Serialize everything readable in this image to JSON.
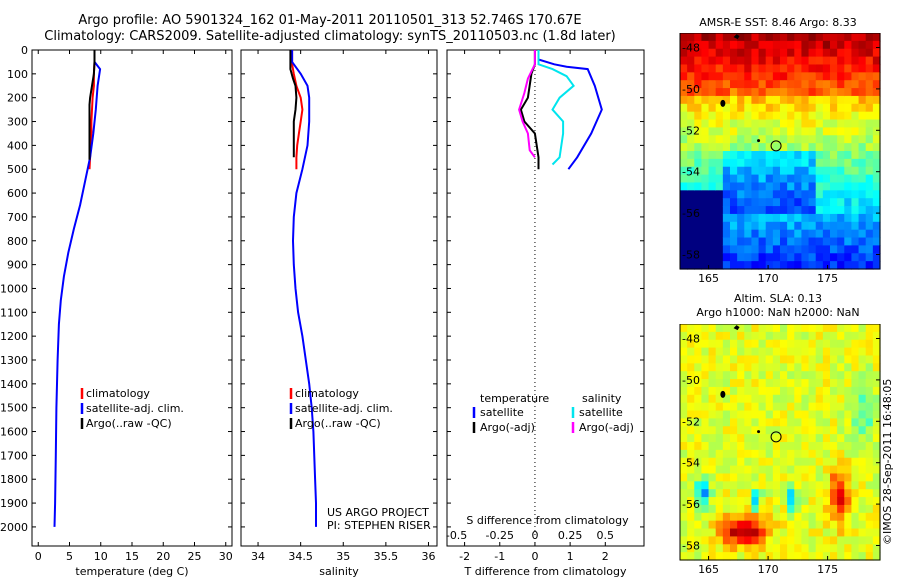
{
  "header": {
    "title_line1": "Argo profile: AO 5901324_162 01-May-2011 20110501_313 52.746S 170.67E",
    "title_line2": "Climatology: CARS2009. Satellite-adjusted climatology: synTS_20110503.nc (1.8d later)"
  },
  "colors": {
    "climatology": "#ff0000",
    "satellite": "#0000ff",
    "argo": "#000000",
    "satellite_salinity": "#00e5ee",
    "argo_salinity": "#ff00ff"
  },
  "chart_data": [
    {
      "type": "line",
      "id": "temperature",
      "xlabel": "temperature (deg C)",
      "ylabel": "",
      "xlim": [
        -1,
        31
      ],
      "ylim": [
        2080,
        0
      ],
      "xticks": [
        0,
        5,
        10,
        15,
        20,
        25,
        30
      ],
      "yticks": [
        0,
        100,
        200,
        300,
        400,
        500,
        600,
        700,
        800,
        900,
        1000,
        1100,
        1200,
        1300,
        1400,
        1500,
        1600,
        1700,
        1800,
        1900,
        2000
      ],
      "legend": [
        "climatology",
        "satellite-adj. clim.",
        "Argo(..raw -QC)"
      ],
      "legend_position": "lower-left",
      "series": [
        {
          "name": "climatology",
          "color": "#ff0000",
          "points": [
            [
              9,
              0
            ],
            [
              9,
              50
            ],
            [
              8.9,
              100
            ],
            [
              8.9,
              150
            ],
            [
              8.7,
              200
            ],
            [
              8.6,
              250
            ],
            [
              8.5,
              300
            ],
            [
              8.5,
              350
            ],
            [
              8.4,
              400
            ],
            [
              8.3,
              450
            ],
            [
              8.2,
              500
            ]
          ]
        },
        {
          "name": "satellite-adj. clim.",
          "color": "#0000ff",
          "points": [
            [
              9,
              0
            ],
            [
              9,
              50
            ],
            [
              9.9,
              80
            ],
            [
              9.5,
              150
            ],
            [
              9.2,
              250
            ],
            [
              8.8,
              350
            ],
            [
              8.3,
              450
            ],
            [
              7.5,
              550
            ],
            [
              6.7,
              650
            ],
            [
              5.7,
              750
            ],
            [
              4.8,
              850
            ],
            [
              4.1,
              950
            ],
            [
              3.6,
              1050
            ],
            [
              3.3,
              1150
            ],
            [
              3.1,
              1300
            ],
            [
              2.9,
              1500
            ],
            [
              2.8,
              1700
            ],
            [
              2.7,
              1900
            ],
            [
              2.6,
              2000
            ]
          ]
        },
        {
          "name": "Argo(..raw -QC)",
          "color": "#000000",
          "points": [
            [
              9,
              0
            ],
            [
              9,
              50
            ],
            [
              8.9,
              100
            ],
            [
              8.6,
              150
            ],
            [
              8.3,
              200
            ],
            [
              8.2,
              230
            ],
            [
              8.2,
              300
            ],
            [
              8.2,
              400
            ],
            [
              8.2,
              460
            ]
          ]
        }
      ]
    },
    {
      "type": "line",
      "id": "salinity",
      "xlabel": "salinity",
      "ylabel": "",
      "xlim": [
        33.8,
        36.1
      ],
      "ylim": [
        2080,
        0
      ],
      "xticks": [
        34,
        34.5,
        35,
        35.5,
        36
      ],
      "legend": [
        "climatology",
        "satellite-adj. clim.",
        "Argo(..raw -QC)"
      ],
      "legend_position": "lower-left",
      "annotation": [
        "US ARGO PROJECT",
        "PI: STEPHEN RISER"
      ],
      "series": [
        {
          "name": "climatology",
          "color": "#ff0000",
          "points": [
            [
              34.4,
              0
            ],
            [
              34.4,
              60
            ],
            [
              34.42,
              100
            ],
            [
              34.45,
              150
            ],
            [
              34.5,
              200
            ],
            [
              34.52,
              250
            ],
            [
              34.5,
              300
            ],
            [
              34.48,
              350
            ],
            [
              34.46,
              400
            ],
            [
              34.45,
              450
            ],
            [
              34.45,
              500
            ]
          ]
        },
        {
          "name": "satellite-adj. clim.",
          "color": "#0000ff",
          "points": [
            [
              34.4,
              0
            ],
            [
              34.4,
              50
            ],
            [
              34.5,
              100
            ],
            [
              34.58,
              150
            ],
            [
              34.6,
              200
            ],
            [
              34.6,
              300
            ],
            [
              34.58,
              400
            ],
            [
              34.52,
              500
            ],
            [
              34.45,
              600
            ],
            [
              34.42,
              700
            ],
            [
              34.41,
              800
            ],
            [
              34.42,
              900
            ],
            [
              34.44,
              1000
            ],
            [
              34.47,
              1100
            ],
            [
              34.52,
              1200
            ],
            [
              34.56,
              1300
            ],
            [
              34.6,
              1400
            ],
            [
              34.63,
              1500
            ],
            [
              34.65,
              1600
            ],
            [
              34.67,
              1800
            ],
            [
              34.68,
              1900
            ],
            [
              34.68,
              2000
            ]
          ]
        },
        {
          "name": "Argo(..raw -QC)",
          "color": "#000000",
          "points": [
            [
              34.38,
              0
            ],
            [
              34.38,
              80
            ],
            [
              34.41,
              120
            ],
            [
              34.44,
              150
            ],
            [
              34.45,
              200
            ],
            [
              34.44,
              250
            ],
            [
              34.42,
              300
            ],
            [
              34.42,
              400
            ],
            [
              34.42,
              450
            ]
          ]
        }
      ]
    },
    {
      "type": "line",
      "id": "difference",
      "xlabel": "T difference from climatology",
      "xlabel_top": "S difference from climatology",
      "ylabel": "",
      "xlim": [
        -2.5,
        3.1
      ],
      "ylim": [
        2080,
        0
      ],
      "xticks": [
        -2,
        -1,
        0,
        1,
        2
      ],
      "xticks_top": [
        -0.5,
        -0.25,
        0,
        0.25,
        0.5
      ],
      "zero_line": 0,
      "legend_groups": [
        {
          "title": "temperature",
          "entries": [
            "satellite",
            "Argo(-adj)"
          ]
        },
        {
          "title": "salinity",
          "entries": [
            "satellite",
            "Argo(-adj)"
          ]
        }
      ],
      "legend_position": "lower-left",
      "series": [
        {
          "name": "satellite",
          "group": "temperature",
          "color": "#0000ff",
          "points": [
            [
              0.1,
              0
            ],
            [
              0.1,
              40
            ],
            [
              0.55,
              60
            ],
            [
              0.9,
              70
            ],
            [
              1.5,
              80
            ],
            [
              1.7,
              150
            ],
            [
              1.9,
              250
            ],
            [
              1.6,
              350
            ],
            [
              1.2,
              450
            ],
            [
              0.95,
              500
            ]
          ]
        },
        {
          "name": "Argo(-adj)",
          "group": "temperature",
          "color": "#000000",
          "points": [
            [
              0,
              0
            ],
            [
              0,
              60
            ],
            [
              -0.1,
              100
            ],
            [
              -0.2,
              200
            ],
            [
              -0.4,
              250
            ],
            [
              -0.3,
              300
            ],
            [
              0,
              350
            ],
            [
              0.05,
              400
            ],
            [
              0.1,
              450
            ],
            [
              0.1,
              500
            ]
          ]
        },
        {
          "name": "satellite",
          "group": "salinity",
          "color": "#00e5ee",
          "points": [
            [
              0.1,
              0
            ],
            [
              0.1,
              60
            ],
            [
              0.5,
              80
            ],
            [
              0.9,
              110
            ],
            [
              1.1,
              150
            ],
            [
              0.7,
              200
            ],
            [
              0.5,
              250
            ],
            [
              0.8,
              300
            ],
            [
              0.8,
              350
            ],
            [
              0.7,
              450
            ],
            [
              0.5,
              480
            ]
          ]
        },
        {
          "name": "Argo(-adj)",
          "group": "salinity",
          "color": "#ff00ff",
          "points": [
            [
              0,
              0
            ],
            [
              0,
              60
            ],
            [
              -0.2,
              120
            ],
            [
              -0.3,
              180
            ],
            [
              -0.45,
              250
            ],
            [
              -0.35,
              300
            ],
            [
              -0.2,
              350
            ],
            [
              -0.15,
              420
            ],
            [
              0,
              450
            ]
          ]
        }
      ]
    },
    {
      "type": "heatmap",
      "id": "sst_map",
      "title": "AMSR-E SST: 8.46  Argo: 8.33",
      "xlim": [
        162.6,
        179.4
      ],
      "ylim": [
        -58.7,
        -47.3
      ],
      "xticks": [
        165,
        170,
        175
      ],
      "yticks": [
        -48,
        -50,
        -52,
        -54,
        -56,
        -58
      ],
      "profile_location": [
        170.67,
        -52.75
      ]
    },
    {
      "type": "heatmap",
      "id": "sla_map",
      "title_line1": "Altim. SLA: 0.13",
      "title_line2": "Argo h1000: NaN h2000: NaN",
      "xlim": [
        162.6,
        179.4
      ],
      "ylim": [
        -58.7,
        -47.3
      ],
      "xticks": [
        165,
        170,
        175
      ],
      "yticks": [
        -48,
        -50,
        -52,
        -54,
        -56,
        -58
      ],
      "profile_location": [
        170.67,
        -52.75
      ]
    }
  ],
  "footer": {
    "stamp": "©IMOS 28-Sep-2011 16:48:05"
  }
}
